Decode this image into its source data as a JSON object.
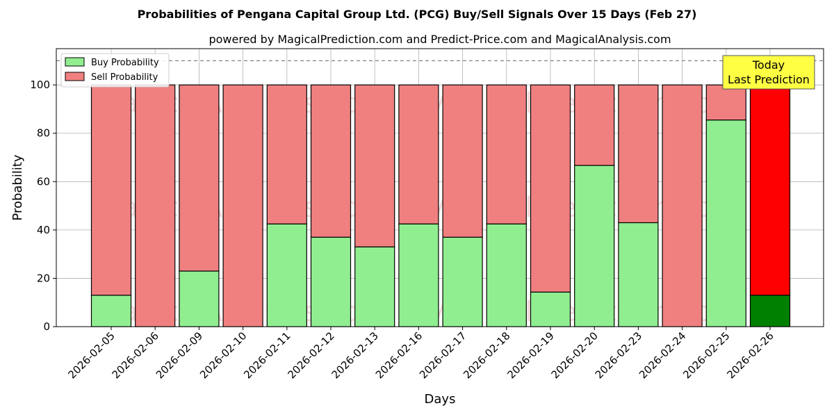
{
  "chart_data": {
    "type": "bar",
    "stacked": true,
    "title": "Probabilities of Pengana Capital Group Ltd. (PCG) Buy/Sell Signals Over 15 Days (Feb 27)",
    "subtitle": "powered by MagicalPrediction.com and Predict-Price.com and MagicalAnalysis.com",
    "xlabel": "Days",
    "ylabel": "Probability",
    "ylim": [
      0,
      115
    ],
    "yticks": [
      "0",
      "20",
      "40",
      "60",
      "80",
      "100"
    ],
    "reference_line": 110,
    "grid": true,
    "legend_position": "top-left",
    "categories": [
      "2026-02-05",
      "2026-02-06",
      "2026-02-09",
      "2026-02-10",
      "2026-02-11",
      "2026-02-12",
      "2026-02-13",
      "2026-02-16",
      "2026-02-17",
      "2026-02-18",
      "2026-02-19",
      "2026-02-20",
      "2026-02-23",
      "2026-02-24",
      "2026-02-25",
      "2026-02-26"
    ],
    "series": [
      {
        "name": "Buy Probability",
        "color": "#90ee90",
        "values": [
          13,
          0,
          23,
          0,
          42.5,
          37,
          33,
          42.5,
          37,
          42.5,
          14.3,
          66.7,
          43,
          0,
          85.5,
          13
        ]
      },
      {
        "name": "Sell Probability",
        "color": "#f08080",
        "values": [
          87,
          100,
          77,
          100,
          57.5,
          63,
          67,
          57.5,
          63,
          57.5,
          85.7,
          33.3,
          57,
          100,
          14.5,
          87
        ]
      }
    ],
    "highlight": {
      "category": "2026-02-26",
      "buy_color": "#008000",
      "sell_color": "#ff0000"
    },
    "annotation": {
      "lines": [
        "Today",
        "Last Prediction"
      ],
      "background": "#ffff44"
    },
    "watermarks": [
      "MagicalAnalysis.com",
      "MagicalPrediction.com"
    ]
  }
}
